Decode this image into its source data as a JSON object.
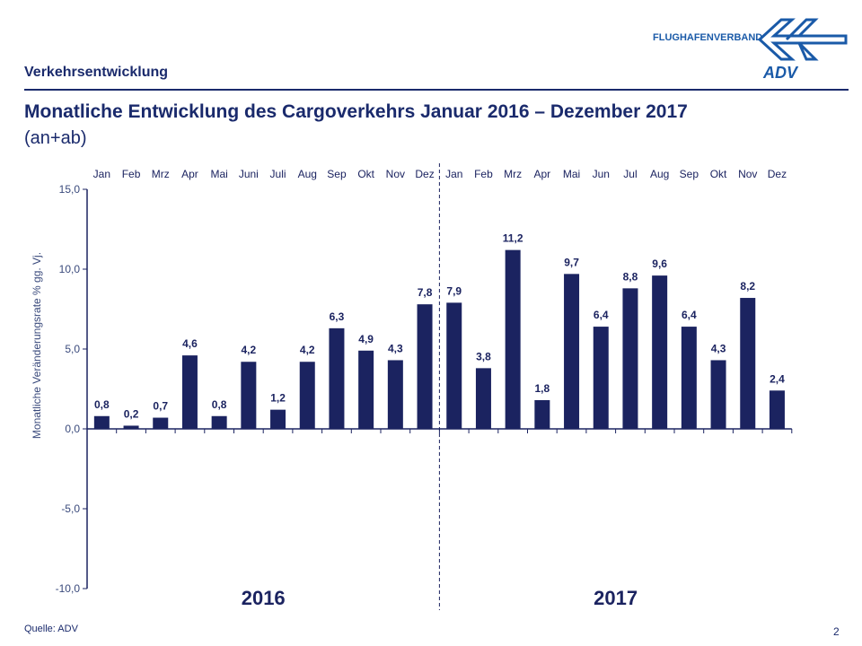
{
  "header": {
    "section": "Verkehrsentwicklung",
    "title": "Monatliche Entwicklung des Cargoverkehrs Januar 2016 – Dezember 2017",
    "subtitle": "(an+ab)"
  },
  "logo": {
    "text": "FLUGHAFENVERBAND",
    "mark": "ADV"
  },
  "footer": {
    "source": "Quelle: ADV",
    "page": "2"
  },
  "colors": {
    "bar": "#1b2360",
    "text": "#1a2a6c",
    "logo": "#1a5aa8"
  },
  "chart_data": {
    "type": "bar",
    "title": "Monatliche Entwicklung des Cargoverkehrs Januar 2016 – Dezember 2017",
    "ylabel": "Monatliche Veränderungsrate % gg. Vj.",
    "ylim": [
      -10,
      15
    ],
    "yticks": [
      "15,0",
      "10,0",
      "5,0",
      "0,0",
      "-5,0",
      "-10,0"
    ],
    "ytick_values": [
      15,
      10,
      5,
      0,
      -5,
      -10
    ],
    "categories": [
      "Jan",
      "Feb",
      "Mrz",
      "Apr",
      "Mai",
      "Juni",
      "Juli",
      "Aug",
      "Sep",
      "Okt",
      "Nov",
      "Dez",
      "Jan",
      "Feb",
      "Mrz",
      "Apr",
      "Mai",
      "Jun",
      "Jul",
      "Aug",
      "Sep",
      "Okt",
      "Nov",
      "Dez"
    ],
    "values": [
      0.8,
      0.2,
      0.7,
      4.6,
      0.8,
      4.2,
      1.2,
      4.2,
      6.3,
      4.9,
      4.3,
      7.8,
      7.9,
      3.8,
      11.2,
      1.8,
      9.7,
      6.4,
      8.8,
      9.6,
      6.4,
      4.3,
      8.2,
      2.4
    ],
    "labels": [
      "0,8",
      "0,2",
      "0,7",
      "4,6",
      "0,8",
      "4,2",
      "1,2",
      "4,2",
      "6,3",
      "4,9",
      "4,3",
      "7,8",
      "7,9",
      "3,8",
      "11,2",
      "1,8",
      "9,7",
      "6,4",
      "8,8",
      "9,6",
      "6,4",
      "4,3",
      "8,2",
      "2,4"
    ],
    "groups": [
      "2016",
      "2017"
    ]
  }
}
